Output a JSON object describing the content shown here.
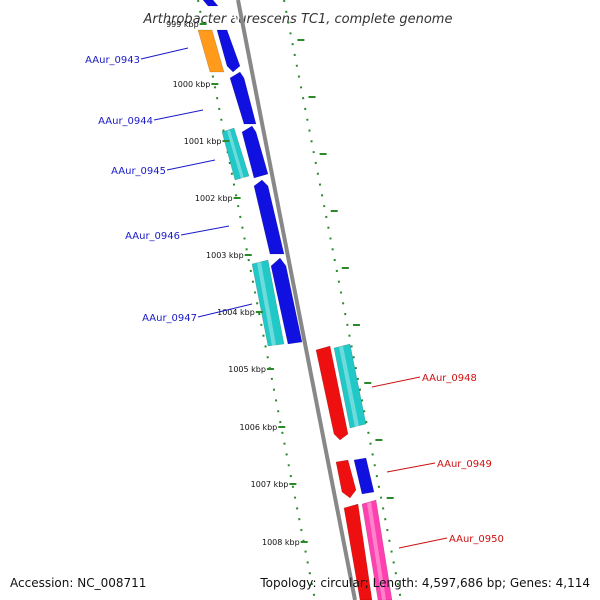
{
  "title": "Arthrobacter aurescens TC1, complete genome",
  "footer": {
    "accession": "Accession: NC_008711",
    "summary": "Topology: circular; Length: 4,597,686 bp; Genes: 4,114"
  },
  "ticks": [
    {
      "label": "999 kbp",
      "faded": true
    },
    {
      "label": "1000 kbp"
    },
    {
      "label": "1001 kbp"
    },
    {
      "label": "1002 kbp"
    },
    {
      "label": "1003 kbp"
    },
    {
      "label": "1004 kbp"
    },
    {
      "label": "1005 kbp"
    },
    {
      "label": "1006 kbp"
    },
    {
      "label": "1007 kbp"
    },
    {
      "label": "1008 kbp"
    }
  ],
  "gene_labels": {
    "left": [
      "AAur_0943",
      "AAur_0944",
      "AAur_0945",
      "AAur_0946",
      "AAur_0947"
    ],
    "right": [
      "AAur_0948",
      "AAur_0949",
      "AAur_0950"
    ]
  },
  "colors": {
    "left_label": "#1a1ac8",
    "right_label": "#cc1111",
    "backbone": "#888888",
    "tick": "#2a8a2a",
    "blue": "#1010e0",
    "cyan": "#20c8c8",
    "orange": "#ff9a1a",
    "red": "#ee1010",
    "pink": "#ff40b0"
  }
}
